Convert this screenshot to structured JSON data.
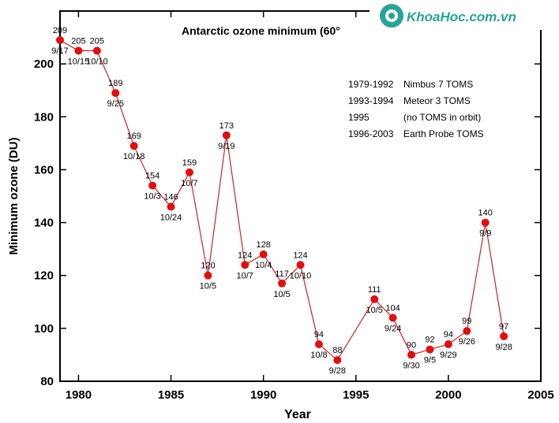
{
  "chart_data": {
    "type": "line",
    "title": "Antarctic ozone minimum (60°",
    "xlabel": "Year",
    "ylabel": "Minimum ozone (DU)",
    "xlim": [
      1979,
      2005
    ],
    "ylim": [
      80,
      220
    ],
    "x_ticks": [
      1980,
      1985,
      1990,
      1995,
      2000,
      2005
    ],
    "y_ticks": [
      80,
      100,
      120,
      140,
      160,
      180,
      200
    ],
    "grid": false,
    "line_color": "#cc2222",
    "marker_color": "#dd1111",
    "series": [
      {
        "points": [
          {
            "year": 1979,
            "value": 209,
            "label": "209",
            "date": "9/17"
          },
          {
            "year": 1980,
            "value": 205,
            "label": "205",
            "date": "10/15"
          },
          {
            "year": 1981,
            "value": 205,
            "label": "205",
            "date": "10/10"
          },
          {
            "year": 1982,
            "value": 189,
            "label": "189",
            "date": "9/25"
          },
          {
            "year": 1983,
            "value": 169,
            "label": "169",
            "date": "10/18"
          },
          {
            "year": 1984,
            "value": 154,
            "label": "154",
            "date": "10/3"
          },
          {
            "year": 1985,
            "value": 146,
            "label": "146",
            "date": "10/24"
          },
          {
            "year": 1986,
            "value": 159,
            "label": "159",
            "date": "10/7"
          },
          {
            "year": 1987,
            "value": 120,
            "label": "120",
            "date": "10/5"
          },
          {
            "year": 1988,
            "value": 173,
            "label": "173",
            "date": "9/19"
          },
          {
            "year": 1989,
            "value": 124,
            "label": "124",
            "date": "10/7"
          },
          {
            "year": 1990,
            "value": 128,
            "label": "128",
            "date": "10/4"
          },
          {
            "year": 1991,
            "value": 117,
            "label": "117",
            "date": "10/5"
          },
          {
            "year": 1992,
            "value": 124,
            "label": "124",
            "date": "10/10"
          },
          {
            "year": 1993,
            "value": 94,
            "label": "94",
            "date": "10/8"
          },
          {
            "year": 1994,
            "value": 88,
            "label": "88",
            "date": "9/28"
          },
          {
            "year": 1996,
            "value": 111,
            "label": "111",
            "date": "10/5"
          },
          {
            "year": 1997,
            "value": 104,
            "label": "104",
            "date": "9/24"
          },
          {
            "year": 1998,
            "value": 90,
            "label": "90",
            "date": "9/30"
          },
          {
            "year": 1999,
            "value": 92,
            "label": "92",
            "date": "9/5"
          },
          {
            "year": 2000,
            "value": 94,
            "label": "94",
            "date": "9/29"
          },
          {
            "year": 2001,
            "value": 99,
            "label": "99",
            "date": "9/26"
          },
          {
            "year": 2002,
            "value": 140,
            "label": "140",
            "date": "9/9"
          },
          {
            "year": 2003,
            "value": 97,
            "label": "97",
            "date": "9/28"
          }
        ]
      }
    ],
    "legend": {
      "placement": "top-right",
      "rows": [
        {
          "years": "1979-1992",
          "instrument": "Nimbus 7 TOMS"
        },
        {
          "years": "1993-1994",
          "instrument": "Meteor 3 TOMS"
        },
        {
          "years": "1995",
          "instrument": "(no TOMS in orbit)"
        },
        {
          "years": "1996-2003",
          "instrument": "Earth Probe TOMS"
        }
      ]
    }
  },
  "watermark": {
    "text": "KhoaHoc.com.vn",
    "color": "#2aa39a"
  }
}
